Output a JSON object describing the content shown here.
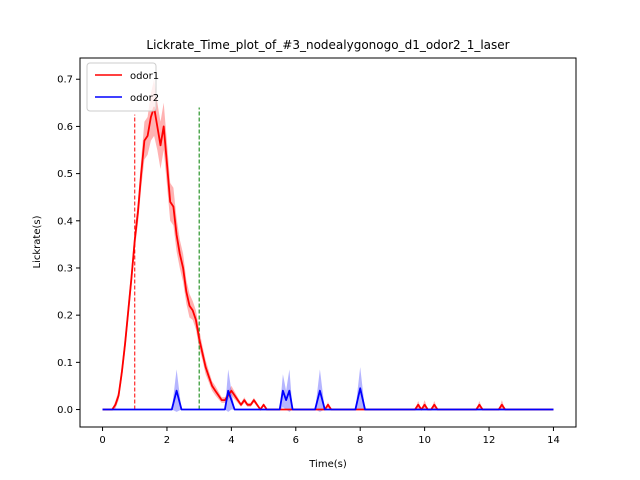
{
  "chart_data": {
    "type": "line",
    "title": "Lickrate_Time_plot_of_#3_nodealygonogo_d1_odor2_1_laser",
    "xlabel": "Time(s)",
    "ylabel": "Lickrate(s)",
    "xlim": [
      -0.7,
      14.7
    ],
    "ylim": [
      -0.037,
      0.745
    ],
    "xticks": [
      0,
      2,
      4,
      6,
      8,
      10,
      12,
      14
    ],
    "yticks": [
      0.0,
      0.1,
      0.2,
      0.3,
      0.4,
      0.5,
      0.6,
      0.7
    ],
    "grid": false,
    "legend_position": "top-left",
    "vlines": [
      {
        "x": 1.0,
        "y_range": [
          0.0,
          0.625
        ],
        "color": "#ff0000",
        "style": "dashed"
      },
      {
        "x": 3.0,
        "y_range": [
          0.0,
          0.64
        ],
        "color": "#008000",
        "style": "dashed"
      }
    ],
    "series": [
      {
        "name": "odor1",
        "color": "#ff0000",
        "band_color": "#ff6666",
        "x": [
          0.0,
          0.3,
          0.4,
          0.5,
          0.6,
          0.7,
          0.8,
          0.9,
          1.0,
          1.1,
          1.2,
          1.3,
          1.4,
          1.5,
          1.6,
          1.7,
          1.8,
          1.9,
          2.0,
          2.1,
          2.2,
          2.3,
          2.4,
          2.5,
          2.6,
          2.7,
          2.8,
          2.9,
          3.0,
          3.1,
          3.2,
          3.3,
          3.4,
          3.5,
          3.6,
          3.7,
          3.8,
          3.9,
          4.0,
          4.1,
          4.2,
          4.3,
          4.4,
          4.5,
          4.6,
          4.7,
          4.8,
          4.9,
          5.0,
          5.1,
          5.5,
          6.0,
          6.9,
          7.0,
          7.1,
          9.7,
          9.8,
          9.9,
          10.0,
          10.1,
          10.2,
          10.3,
          10.4,
          10.5,
          11.6,
          11.7,
          11.8,
          12.3,
          12.4,
          12.5,
          12.6,
          14.0
        ],
        "values": [
          0.0,
          0.0,
          0.01,
          0.03,
          0.08,
          0.14,
          0.21,
          0.28,
          0.36,
          0.42,
          0.5,
          0.57,
          0.58,
          0.62,
          0.64,
          0.6,
          0.56,
          0.6,
          0.52,
          0.44,
          0.43,
          0.37,
          0.33,
          0.3,
          0.25,
          0.22,
          0.21,
          0.19,
          0.15,
          0.12,
          0.09,
          0.07,
          0.05,
          0.04,
          0.03,
          0.02,
          0.02,
          0.03,
          0.04,
          0.03,
          0.02,
          0.01,
          0.02,
          0.01,
          0.01,
          0.02,
          0.01,
          0.0,
          0.01,
          0.0,
          0.0,
          0.0,
          0.0,
          0.01,
          0.0,
          0.0,
          0.01,
          0.0,
          0.01,
          0.0,
          0.0,
          0.01,
          0.0,
          0.0,
          0.0,
          0.01,
          0.0,
          0.0,
          0.01,
          0.0,
          0.0,
          0.0
        ],
        "band_half_width": [
          0.0,
          0.0,
          0.008,
          0.01,
          0.015,
          0.018,
          0.02,
          0.02,
          0.02,
          0.025,
          0.03,
          0.04,
          0.04,
          0.05,
          0.06,
          0.05,
          0.05,
          0.05,
          0.045,
          0.04,
          0.04,
          0.035,
          0.03,
          0.03,
          0.025,
          0.025,
          0.02,
          0.02,
          0.02,
          0.015,
          0.015,
          0.012,
          0.01,
          0.01,
          0.008,
          0.006,
          0.006,
          0.008,
          0.01,
          0.008,
          0.006,
          0.004,
          0.006,
          0.004,
          0.004,
          0.005,
          0.004,
          0.0,
          0.004,
          0.0,
          0.0,
          0.0,
          0.0,
          0.006,
          0.0,
          0.0,
          0.008,
          0.0,
          0.01,
          0.0,
          0.0,
          0.008,
          0.0,
          0.0,
          0.0,
          0.008,
          0.0,
          0.0,
          0.01,
          0.0,
          0.0,
          0.0
        ]
      },
      {
        "name": "odor2",
        "color": "#0000ff",
        "band_color": "#6b6bff",
        "x": [
          0.0,
          2.15,
          2.3,
          2.45,
          3.8,
          3.9,
          4.0,
          4.1,
          5.5,
          5.6,
          5.7,
          5.8,
          5.9,
          6.6,
          6.75,
          6.9,
          7.85,
          8.0,
          8.15,
          14.0
        ],
        "values": [
          0.0,
          0.0,
          0.04,
          0.0,
          0.0,
          0.04,
          0.02,
          0.0,
          0.0,
          0.04,
          0.02,
          0.04,
          0.0,
          0.0,
          0.04,
          0.0,
          0.0,
          0.045,
          0.0,
          0.0
        ],
        "band_half_width": [
          0.0,
          0.0,
          0.045,
          0.0,
          0.0,
          0.045,
          0.02,
          0.0,
          0.0,
          0.035,
          0.02,
          0.045,
          0.0,
          0.0,
          0.045,
          0.0,
          0.0,
          0.045,
          0.0,
          0.0
        ]
      }
    ]
  }
}
